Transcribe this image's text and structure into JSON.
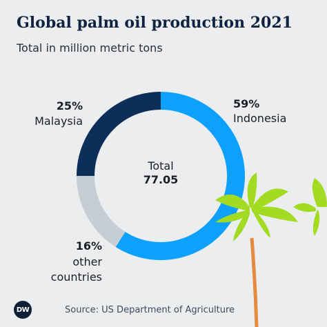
{
  "title": "Global palm oil production 2021",
  "subtitle": "Total in million metric tons",
  "chart_data": {
    "type": "pie",
    "title": "Global palm oil production 2021",
    "subtitle": "Total in million metric tons",
    "center_label": "Total",
    "total": "77.05",
    "slices": [
      {
        "label": "Indonesia",
        "value": 59,
        "value_label": "59%",
        "color": "#0da1fd"
      },
      {
        "label": "other countries",
        "value": 16,
        "value_label": "16%",
        "color": "#c6cdd4"
      },
      {
        "label": "Malaysia",
        "value": 25,
        "value_label": "25%",
        "color": "#0c2e59"
      }
    ]
  },
  "label_text": {
    "indonesia": {
      "pct": "59%",
      "name": "Indonesia"
    },
    "other": {
      "pct": "16%",
      "line1": "other",
      "line2": "countries"
    },
    "malaysia": {
      "pct": "25%",
      "name": "Malaysia"
    }
  },
  "footer": {
    "logo": "DW",
    "source": "Source: US Department of Agriculture"
  },
  "colors": {
    "trunk": "#e58a3e",
    "fronds": "#a3db22",
    "background": "#ebedef"
  }
}
